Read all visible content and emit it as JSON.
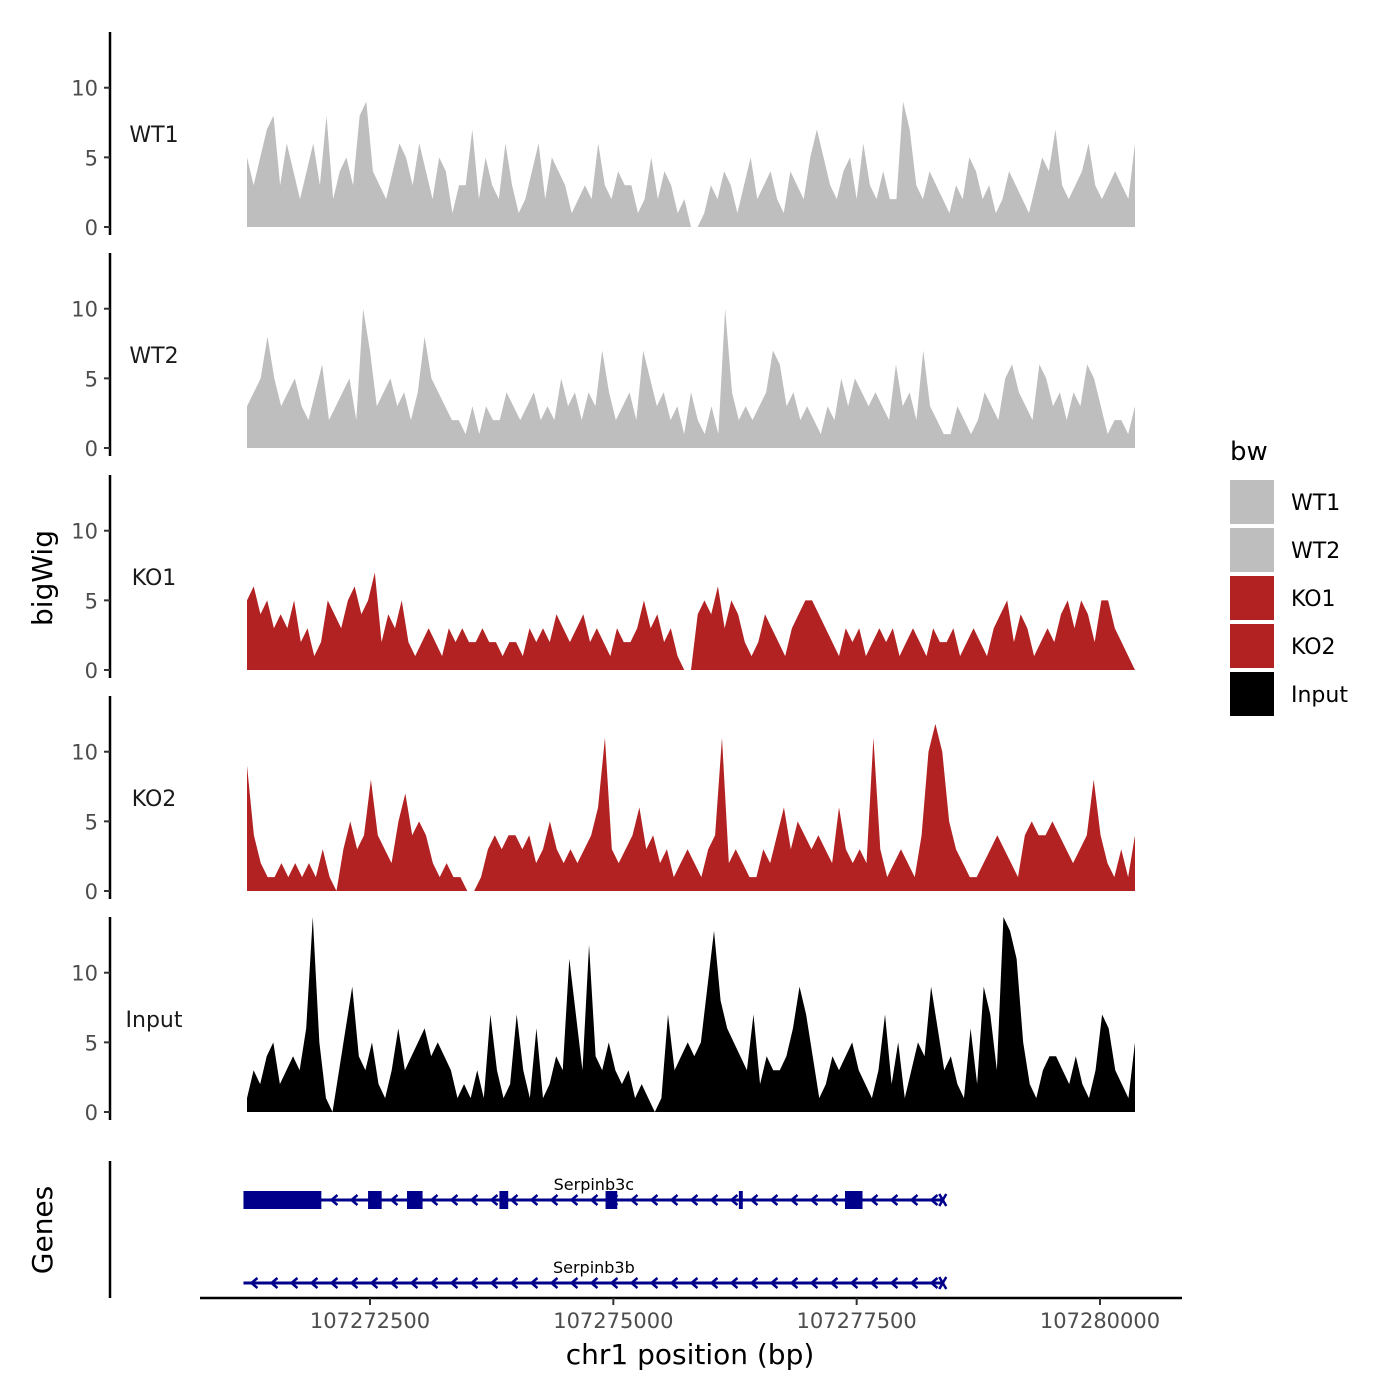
{
  "chart_data": {
    "type": "area",
    "ylabel": "bigWig",
    "xlabel": "chr1 position (bp)",
    "y_ticks": [
      0,
      5,
      10
    ],
    "ylim": [
      0,
      14
    ],
    "xlim": [
      107270800,
      107280800
    ],
    "x_ticks": [
      107272500,
      107275000,
      107277500,
      107280000
    ],
    "x_tick_labels": [
      "107272500",
      "107275000",
      "107277500",
      "107280000"
    ],
    "tracks": [
      {
        "name": "WT1",
        "label": "WT1",
        "color": "#bebebe",
        "values": [
          5,
          3,
          5,
          7,
          8,
          3,
          6,
          4,
          2,
          4,
          6,
          3,
          8,
          2,
          4,
          5,
          3,
          8,
          9,
          4,
          3,
          2,
          4,
          6,
          5,
          3,
          6,
          4,
          2,
          5,
          4,
          1,
          3,
          3,
          7,
          2,
          5,
          3,
          2,
          6,
          3,
          1,
          2,
          4,
          6,
          2,
          5,
          4,
          3,
          1,
          2,
          3,
          2,
          6,
          3,
          2,
          4,
          3,
          3,
          1,
          2,
          5,
          2,
          4,
          3,
          1,
          2,
          0,
          0,
          1,
          3,
          2,
          4,
          3,
          1,
          3,
          5,
          2,
          3,
          4,
          2,
          1,
          4,
          3,
          2,
          5,
          7,
          5,
          3,
          2,
          4,
          5,
          2,
          6,
          3,
          2,
          4,
          2,
          2,
          9,
          7,
          3,
          2,
          4,
          3,
          2,
          1,
          3,
          2,
          5,
          4,
          2,
          3,
          1,
          2,
          4,
          3,
          2,
          1,
          3,
          5,
          4,
          7,
          3,
          2,
          3,
          4,
          6,
          3,
          2,
          3,
          4,
          3,
          2,
          6
        ]
      },
      {
        "name": "WT2",
        "label": "WT2",
        "color": "#bebebe",
        "values": [
          3,
          4,
          5,
          8,
          5,
          3,
          4,
          5,
          3,
          2,
          4,
          6,
          2,
          3,
          4,
          5,
          2,
          10,
          7,
          3,
          4,
          5,
          3,
          4,
          2,
          4,
          8,
          5,
          4,
          3,
          2,
          2,
          1,
          3,
          1,
          3,
          2,
          2,
          4,
          3,
          2,
          3,
          4,
          2,
          3,
          2,
          5,
          3,
          4,
          2,
          4,
          3,
          7,
          4,
          2,
          3,
          4,
          2,
          7,
          5,
          3,
          4,
          2,
          3,
          1,
          4,
          2,
          1,
          3,
          1,
          10,
          4,
          2,
          3,
          2,
          3,
          4,
          7,
          6,
          3,
          4,
          2,
          3,
          2,
          1,
          3,
          2,
          5,
          3,
          5,
          4,
          3,
          4,
          3,
          2,
          6,
          3,
          4,
          2,
          7,
          3,
          2,
          1,
          1,
          3,
          2,
          1,
          2,
          4,
          3,
          2,
          5,
          6,
          4,
          3,
          2,
          6,
          5,
          3,
          4,
          2,
          4,
          3,
          6,
          5,
          3,
          1,
          2,
          2,
          1,
          3
        ]
      },
      {
        "name": "KO1",
        "label": "KO1",
        "color": "#b22222",
        "values": [
          5,
          6,
          4,
          5,
          3,
          4,
          3,
          5,
          2,
          3,
          1,
          2,
          5,
          4,
          3,
          5,
          6,
          4,
          5,
          7,
          2,
          4,
          3,
          5,
          2,
          1,
          2,
          3,
          2,
          1,
          3,
          2,
          3,
          2,
          2,
          3,
          2,
          2,
          1,
          2,
          2,
          1,
          3,
          2,
          3,
          2,
          4,
          3,
          2,
          3,
          4,
          2,
          3,
          2,
          1,
          3,
          2,
          2,
          3,
          5,
          3,
          4,
          2,
          3,
          1,
          0,
          0,
          4,
          5,
          4,
          6,
          3,
          5,
          4,
          2,
          1,
          2,
          4,
          3,
          2,
          1,
          3,
          4,
          5,
          5,
          4,
          3,
          2,
          1,
          3,
          2,
          3,
          1,
          2,
          3,
          2,
          3,
          1,
          2,
          3,
          2,
          1,
          3,
          2,
          2,
          3,
          1,
          2,
          3,
          2,
          1,
          3,
          4,
          5,
          2,
          4,
          3,
          1,
          2,
          3,
          2,
          4,
          5,
          3,
          5,
          4,
          2,
          5,
          5,
          3,
          2,
          1,
          0
        ]
      },
      {
        "name": "KO2",
        "label": "KO2",
        "color": "#b22222",
        "values": [
          9,
          4,
          2,
          1,
          1,
          2,
          1,
          2,
          1,
          2,
          1,
          3,
          1,
          0,
          3,
          5,
          3,
          4,
          8,
          4,
          3,
          2,
          5,
          7,
          4,
          5,
          4,
          2,
          1,
          2,
          1,
          1,
          0,
          0,
          1,
          3,
          4,
          3,
          4,
          4,
          3,
          4,
          2,
          3,
          5,
          3,
          2,
          3,
          2,
          3,
          4,
          6,
          11,
          3,
          2,
          3,
          4,
          6,
          3,
          4,
          2,
          3,
          1,
          2,
          3,
          2,
          1,
          3,
          4,
          11,
          2,
          3,
          2,
          1,
          1,
          3,
          2,
          4,
          6,
          3,
          5,
          4,
          3,
          4,
          3,
          2,
          6,
          3,
          2,
          3,
          2,
          11,
          3,
          1,
          2,
          3,
          2,
          1,
          4,
          10,
          12,
          10,
          5,
          3,
          2,
          1,
          1,
          2,
          3,
          4,
          3,
          2,
          1,
          4,
          5,
          4,
          4,
          5,
          4,
          3,
          2,
          3,
          4,
          8,
          4,
          2,
          1,
          3,
          1,
          4
        ]
      },
      {
        "name": "Input",
        "label": "Input",
        "color": "#000000",
        "values": [
          1,
          3,
          2,
          4,
          5,
          2,
          3,
          4,
          3,
          6,
          14,
          5,
          1,
          0,
          3,
          6,
          9,
          4,
          3,
          5,
          2,
          1,
          3,
          6,
          3,
          4,
          5,
          6,
          4,
          5,
          4,
          3,
          1,
          2,
          1,
          3,
          1,
          7,
          3,
          1,
          2,
          7,
          3,
          1,
          6,
          1,
          2,
          4,
          3,
          11,
          7,
          3,
          12,
          4,
          3,
          5,
          3,
          2,
          3,
          1,
          2,
          1,
          0,
          1,
          7,
          3,
          4,
          5,
          4,
          5,
          9,
          13,
          8,
          6,
          5,
          4,
          3,
          7,
          2,
          4,
          3,
          3,
          4,
          6,
          9,
          7,
          4,
          1,
          2,
          4,
          3,
          4,
          5,
          3,
          2,
          1,
          3,
          7,
          2,
          5,
          1,
          3,
          5,
          4,
          9,
          6,
          3,
          4,
          2,
          1,
          6,
          2,
          9,
          7,
          3,
          14,
          13,
          11,
          5,
          2,
          1,
          3,
          4,
          4,
          3,
          2,
          4,
          2,
          1,
          3,
          7,
          6,
          3,
          2,
          1,
          5
        ]
      }
    ],
    "legend": {
      "title": "bw",
      "position": "right",
      "entries": [
        {
          "label": "WT1",
          "color": "#bebebe"
        },
        {
          "label": "WT2",
          "color": "#bebebe"
        },
        {
          "label": "KO1",
          "color": "#b22222"
        },
        {
          "label": "KO2",
          "color": "#b22222"
        },
        {
          "label": "Input",
          "color": "#000000"
        }
      ]
    },
    "genes_panel": {
      "ylabel": "Genes",
      "color": "#00008b",
      "genes": [
        {
          "name": "Serpinb3c",
          "start": 107271200,
          "end": 107278400,
          "strand": "-",
          "exons": [
            [
              107271200,
              107272000
            ],
            [
              107272480,
              107272620
            ],
            [
              107272880,
              107273040
            ],
            [
              107273830,
              107273920
            ],
            [
              107274920,
              107275040
            ],
            [
              107276290,
              107276330
            ],
            [
              107277380,
              107277560
            ]
          ]
        },
        {
          "name": "Serpinb3b",
          "start": 107271200,
          "end": 107278400,
          "strand": "-",
          "exons": []
        }
      ]
    }
  }
}
